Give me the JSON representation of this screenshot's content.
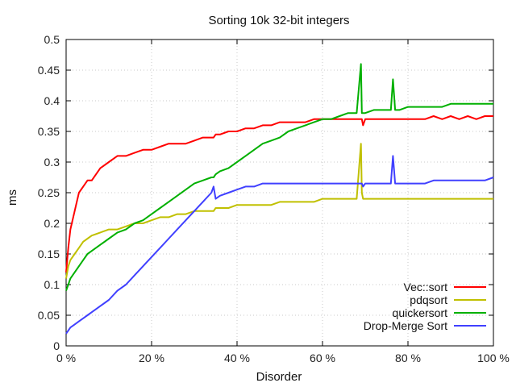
{
  "chart_data": {
    "type": "line",
    "title": "Sorting 10k 32-bit integers",
    "xlabel": "Disorder",
    "ylabel": "ms",
    "xlim": [
      0,
      100
    ],
    "ylim": [
      0,
      0.5
    ],
    "x_ticks": [
      {
        "value": 0,
        "label": "0 %"
      },
      {
        "value": 20,
        "label": "20 %"
      },
      {
        "value": 40,
        "label": "40 %"
      },
      {
        "value": 60,
        "label": "60 %"
      },
      {
        "value": 80,
        "label": "80 %"
      },
      {
        "value": 100,
        "label": "100 %"
      }
    ],
    "y_ticks": [
      {
        "value": 0,
        "label": "0"
      },
      {
        "value": 0.05,
        "label": "0.05"
      },
      {
        "value": 0.1,
        "label": "0.1"
      },
      {
        "value": 0.15,
        "label": "0.15"
      },
      {
        "value": 0.2,
        "label": "0.2"
      },
      {
        "value": 0.25,
        "label": "0.25"
      },
      {
        "value": 0.3,
        "label": "0.3"
      },
      {
        "value": 0.35,
        "label": "0.35"
      },
      {
        "value": 0.4,
        "label": "0.4"
      },
      {
        "value": 0.45,
        "label": "0.45"
      },
      {
        "value": 0.5,
        "label": "0.5"
      }
    ],
    "grid": true,
    "legend_position": "bottom-right",
    "x": [
      0,
      0.5,
      1,
      2,
      3,
      4,
      5,
      6,
      8,
      10,
      12,
      14,
      16,
      18,
      20,
      22,
      24,
      26,
      28,
      30,
      32,
      34,
      34.5,
      35,
      36,
      38,
      40,
      42,
      44,
      46,
      48,
      50,
      52,
      54,
      56,
      58,
      60,
      62,
      64,
      66,
      68,
      69,
      69.2,
      69.5,
      70,
      72,
      74,
      76,
      76.5,
      77,
      78,
      80,
      82,
      84,
      86,
      88,
      90,
      92,
      94,
      96,
      98,
      100
    ],
    "series": [
      {
        "name": "Vec::sort",
        "color": "#ff0000",
        "values": [
          0.12,
          0.16,
          0.19,
          0.22,
          0.25,
          0.26,
          0.27,
          0.27,
          0.29,
          0.3,
          0.31,
          0.31,
          0.315,
          0.32,
          0.32,
          0.325,
          0.33,
          0.33,
          0.33,
          0.335,
          0.34,
          0.34,
          0.34,
          0.345,
          0.345,
          0.35,
          0.35,
          0.355,
          0.355,
          0.36,
          0.36,
          0.365,
          0.365,
          0.365,
          0.365,
          0.37,
          0.37,
          0.37,
          0.37,
          0.37,
          0.37,
          0.37,
          0.37,
          0.36,
          0.37,
          0.37,
          0.37,
          0.37,
          0.37,
          0.37,
          0.37,
          0.37,
          0.37,
          0.37,
          0.375,
          0.37,
          0.375,
          0.37,
          0.375,
          0.37,
          0.375,
          0.375
        ]
      },
      {
        "name": "pdqsort",
        "color": "#c0c000",
        "values": [
          0.11,
          0.13,
          0.14,
          0.15,
          0.16,
          0.17,
          0.175,
          0.18,
          0.185,
          0.19,
          0.19,
          0.195,
          0.2,
          0.2,
          0.205,
          0.21,
          0.21,
          0.215,
          0.215,
          0.22,
          0.22,
          0.22,
          0.22,
          0.225,
          0.225,
          0.225,
          0.23,
          0.23,
          0.23,
          0.23,
          0.23,
          0.235,
          0.235,
          0.235,
          0.235,
          0.235,
          0.24,
          0.24,
          0.24,
          0.24,
          0.24,
          0.33,
          0.25,
          0.24,
          0.24,
          0.24,
          0.24,
          0.24,
          0.24,
          0.24,
          0.24,
          0.24,
          0.24,
          0.24,
          0.24,
          0.24,
          0.24,
          0.24,
          0.24,
          0.24,
          0.24,
          0.24
        ]
      },
      {
        "name": "quickersort",
        "color": "#00b000",
        "values": [
          0.09,
          0.1,
          0.11,
          0.12,
          0.13,
          0.14,
          0.15,
          0.155,
          0.165,
          0.175,
          0.185,
          0.19,
          0.2,
          0.205,
          0.215,
          0.225,
          0.235,
          0.245,
          0.255,
          0.265,
          0.27,
          0.275,
          0.275,
          0.28,
          0.285,
          0.29,
          0.3,
          0.31,
          0.32,
          0.33,
          0.335,
          0.34,
          0.35,
          0.355,
          0.36,
          0.365,
          0.37,
          0.37,
          0.375,
          0.38,
          0.38,
          0.46,
          0.38,
          0.38,
          0.38,
          0.385,
          0.385,
          0.385,
          0.435,
          0.385,
          0.385,
          0.39,
          0.39,
          0.39,
          0.39,
          0.39,
          0.395,
          0.395,
          0.395,
          0.395,
          0.395,
          0.395
        ]
      },
      {
        "name": "Drop-Merge Sort",
        "color": "#4040ff",
        "values": [
          0.02,
          0.025,
          0.03,
          0.035,
          0.04,
          0.045,
          0.05,
          0.055,
          0.065,
          0.075,
          0.09,
          0.1,
          0.115,
          0.13,
          0.145,
          0.16,
          0.175,
          0.19,
          0.205,
          0.22,
          0.235,
          0.25,
          0.26,
          0.24,
          0.245,
          0.25,
          0.255,
          0.26,
          0.26,
          0.265,
          0.265,
          0.265,
          0.265,
          0.265,
          0.265,
          0.265,
          0.265,
          0.265,
          0.265,
          0.265,
          0.265,
          0.265,
          0.265,
          0.26,
          0.265,
          0.265,
          0.265,
          0.265,
          0.31,
          0.265,
          0.265,
          0.265,
          0.265,
          0.265,
          0.27,
          0.27,
          0.27,
          0.27,
          0.27,
          0.27,
          0.27,
          0.275
        ]
      }
    ]
  }
}
